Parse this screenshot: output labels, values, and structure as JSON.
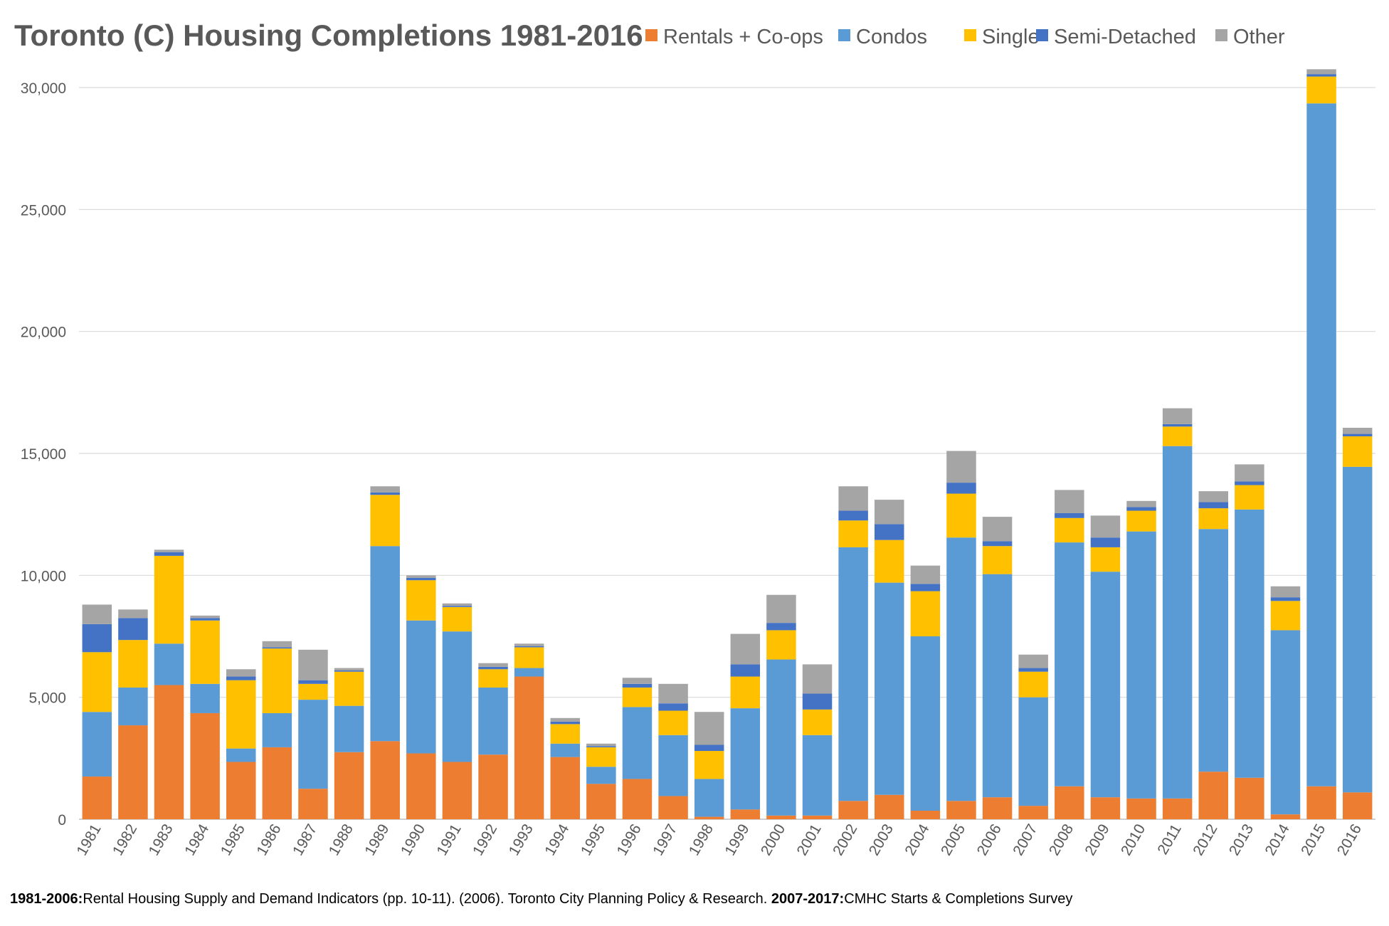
{
  "chart_data": {
    "type": "bar",
    "stacked": true,
    "title": "Toronto (C) Housing Completions 1981-2016",
    "xlabel": "",
    "ylabel": "",
    "ylim": [
      0,
      30000
    ],
    "yticks": [
      "0",
      "5,000",
      "10,000",
      "15,000",
      "20,000",
      "25,000",
      "30,000"
    ],
    "ytick_values": [
      0,
      5000,
      10000,
      15000,
      20000,
      25000,
      30000
    ],
    "grid": true,
    "legend_position": "top",
    "categories": [
      "1981",
      "1982",
      "1983",
      "1984",
      "1985",
      "1986",
      "1987",
      "1988",
      "1989",
      "1990",
      "1991",
      "1992",
      "1993",
      "1994",
      "1995",
      "1996",
      "1997",
      "1998",
      "1999",
      "2000",
      "2001",
      "2002",
      "2003",
      "2004",
      "2005",
      "2006",
      "2007",
      "2008",
      "2009",
      "2010",
      "2011",
      "2012",
      "2013",
      "2014",
      "2015",
      "2016"
    ],
    "series": [
      {
        "name": "Rentals + Co-ops",
        "color": "#ed7d31",
        "values": [
          1750,
          3850,
          5500,
          4350,
          2350,
          2950,
          1250,
          2750,
          3200,
          2700,
          2350,
          2650,
          5850,
          2550,
          1450,
          1650,
          950,
          100,
          400,
          150,
          150,
          750,
          1000,
          350,
          750,
          900,
          550,
          1350,
          900,
          850,
          850,
          1950,
          1700,
          200,
          1350,
          1100
        ]
      },
      {
        "name": "Condos",
        "color": "#5b9bd5",
        "values": [
          2650,
          1550,
          1700,
          1200,
          550,
          1400,
          3650,
          1900,
          8000,
          5450,
          5350,
          2750,
          350,
          550,
          700,
          2950,
          2500,
          1550,
          4150,
          6400,
          3300,
          10400,
          8700,
          7150,
          10800,
          9150,
          4450,
          10000,
          9250,
          10950,
          14450,
          9950,
          11000,
          7550,
          28000,
          13350
        ]
      },
      {
        "name": "Single",
        "color": "#ffc000",
        "values": [
          2450,
          1950,
          3600,
          2600,
          2800,
          2650,
          650,
          1400,
          2100,
          1650,
          1000,
          750,
          850,
          800,
          800,
          800,
          1000,
          1150,
          1300,
          1200,
          1050,
          1100,
          1750,
          1850,
          1800,
          1150,
          1050,
          1000,
          1000,
          850,
          800,
          850,
          1000,
          1200,
          1100,
          1250
        ]
      },
      {
        "name": "Semi-Detached",
        "color": "#4472c4",
        "values": [
          1150,
          900,
          150,
          100,
          150,
          50,
          150,
          50,
          100,
          100,
          50,
          100,
          50,
          100,
          50,
          150,
          300,
          250,
          500,
          300,
          650,
          400,
          650,
          300,
          450,
          200,
          150,
          200,
          400,
          150,
          100,
          250,
          150,
          150,
          100,
          100
        ]
      },
      {
        "name": "Other",
        "color": "#a5a5a5",
        "values": [
          800,
          350,
          100,
          100,
          300,
          250,
          1250,
          100,
          250,
          100,
          100,
          150,
          100,
          150,
          100,
          250,
          800,
          1350,
          1250,
          1150,
          1200,
          1000,
          1000,
          750,
          1300,
          1000,
          550,
          950,
          900,
          250,
          650,
          450,
          700,
          450,
          200,
          250
        ]
      }
    ]
  },
  "source": {
    "label1": "1981-2006:",
    "text1": "Rental Housing Supply and Demand Indicators (pp. 10-11). (2006). Toronto City Planning Policy & Research.",
    "label2": "2007-2017:",
    "text2": "CMHC Starts & Completions Survey"
  }
}
